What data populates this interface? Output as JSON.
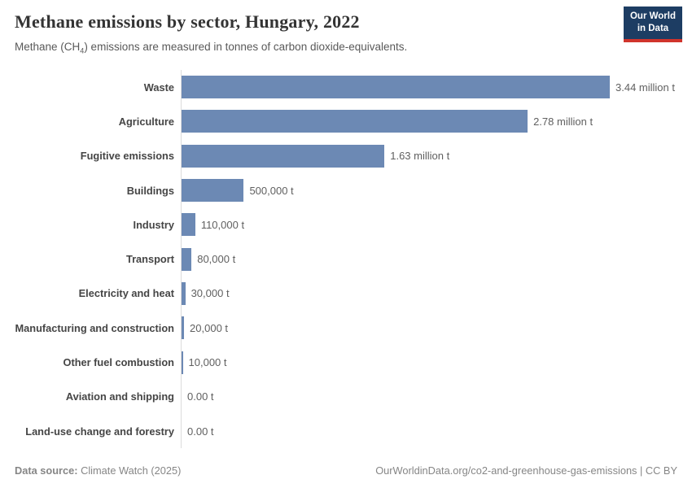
{
  "header": {
    "logo": {
      "line1": "Our World",
      "line2": "in Data",
      "bg_color": "#1d3d63",
      "stripe_color": "#d0342c"
    }
  },
  "chart_data": {
    "type": "bar",
    "orientation": "horizontal",
    "title": "Methane emissions by sector, Hungary, 2022",
    "subtitle": "Methane (CH₄) emissions are measured in tonnes of carbon dioxide-equivalents.",
    "subtitle_parts": {
      "prefix": "Methane (CH",
      "subscript": "4",
      "suffix": ") emissions are measured in tonnes of carbon dioxide-equivalents."
    },
    "categories": [
      "Waste",
      "Agriculture",
      "Fugitive emissions",
      "Buildings",
      "Industry",
      "Transport",
      "Electricity and heat",
      "Manufacturing and construction",
      "Other fuel combustion",
      "Aviation and shipping",
      "Land-use change and forestry"
    ],
    "values": [
      3440000,
      2780000,
      1630000,
      500000,
      110000,
      80000,
      30000,
      20000,
      10000,
      0,
      0
    ],
    "value_labels": [
      "3.44 million t",
      "2.78 million t",
      "1.63 million t",
      "500,000 t",
      "110,000 t",
      "80,000 t",
      "30,000 t",
      "20,000 t",
      "10,000 t",
      "0.00 t",
      "0.00 t"
    ],
    "unit": "t",
    "xlim": [
      0,
      3440000
    ],
    "bar_color": "#6c89b4",
    "axis_line_color": "#dcdcdc",
    "legend": "none",
    "grid": "off"
  },
  "footer": {
    "source_label": "Data source:",
    "source_value": "Climate Watch (2025)",
    "url": "OurWorldinData.org/co2-and-greenhouse-gas-emissions",
    "separator": " | ",
    "license": "CC BY"
  }
}
